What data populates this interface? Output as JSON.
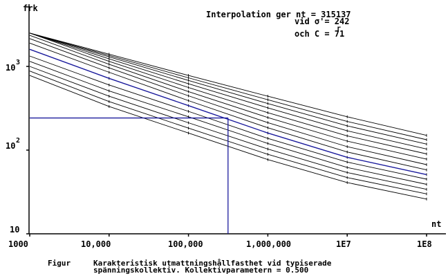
{
  "header": {
    "line1": "Interpolation ger nt = 315137",
    "line2": "vid  σ'=  242",
    "line2_sub": "r",
    "line3": "och  C =  71"
  },
  "axis": {
    "ylabel": "frk",
    "xlabel": "nt",
    "y_tick_labels": [
      "10",
      "10",
      "10"
    ],
    "y_tick_exponents": [
      "3",
      "2"
    ],
    "x_tick_labels": [
      "1000",
      "10,000",
      "100,000",
      "1,000,000",
      "1E7",
      "1E8"
    ]
  },
  "caption": {
    "prefix": "Figur",
    "line1": "Karakteristisk utmattningshållfasthet vid typiserade",
    "line2": "spänningskollektiv. Kollektivparametern = 0.500"
  },
  "colors": {
    "curve": "#000000",
    "highlight": "#1a1a9c"
  },
  "chart_data": {
    "type": "line",
    "x_scale": "log",
    "y_scale": "log",
    "xlim": [
      1000,
      100000000
    ],
    "ylim": [
      10,
      5000
    ],
    "x": [
      1000,
      10000,
      100000,
      1000000,
      10000000,
      100000000
    ],
    "series": [
      {
        "values": [
          2500,
          1400,
          780,
          440,
          250,
          150
        ]
      },
      {
        "values": [
          2500,
          1350,
          730,
          400,
          220,
          133
        ]
      },
      {
        "values": [
          2500,
          1300,
          680,
          360,
          195,
          118
        ]
      },
      {
        "values": [
          2500,
          1230,
          620,
          320,
          170,
          103
        ]
      },
      {
        "values": [
          2500,
          1150,
          560,
          280,
          148,
          90
        ]
      },
      {
        "values": [
          2350,
          1060,
          500,
          245,
          128,
          78
        ]
      },
      {
        "values": [
          2150,
          960,
          445,
          213,
          110,
          67
        ]
      },
      {
        "values": [
          1900,
          850,
          390,
          185,
          95,
          58
        ]
      },
      {
        "values": [
          1600,
          720,
          340,
          160,
          82,
          51
        ]
      },
      {
        "values": [
          1330,
          600,
          290,
          138,
          72,
          45
        ]
      },
      {
        "values": [
          1150,
          510,
          250,
          120,
          62,
          39
        ]
      },
      {
        "values": [
          1000,
          440,
          212,
          103,
          54,
          34
        ]
      },
      {
        "values": [
          880,
          380,
          183,
          89,
          47,
          30
        ]
      },
      {
        "values": [
          780,
          332,
          160,
          77,
          41,
          26
        ]
      }
    ],
    "highlight_index": 8,
    "interpolation": {
      "x": 315137,
      "y": 242
    }
  }
}
